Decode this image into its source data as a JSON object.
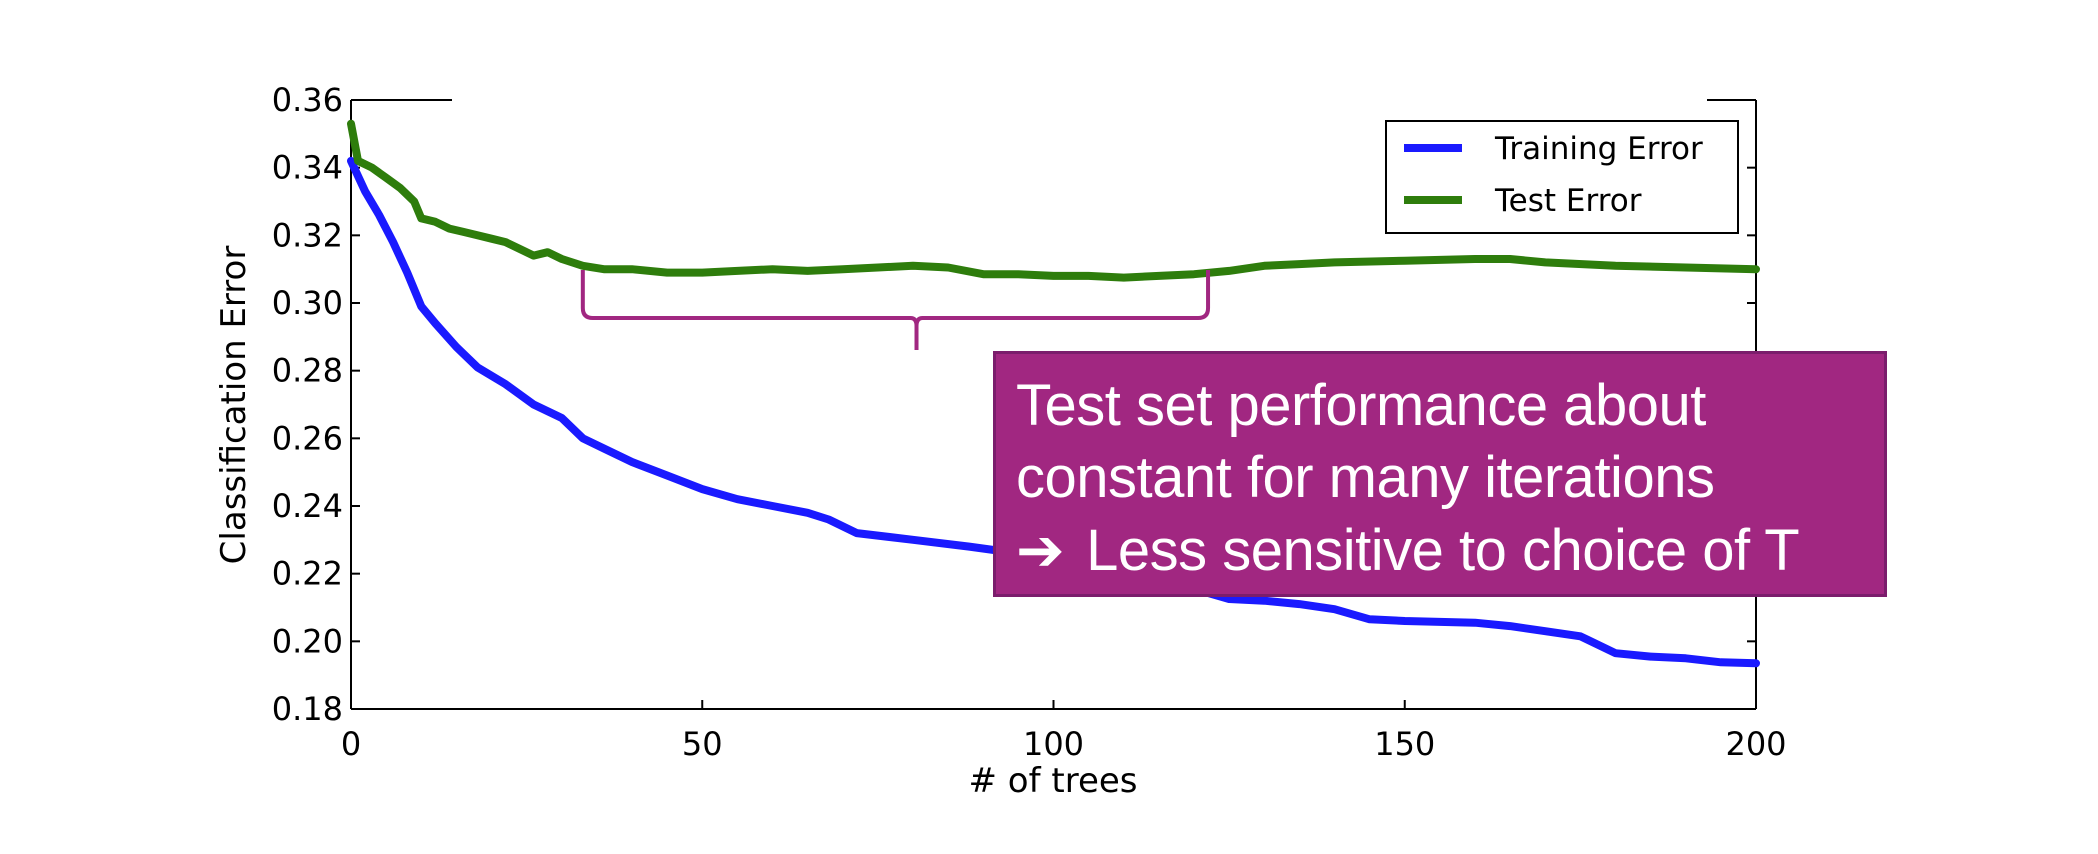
{
  "chart_data": {
    "type": "line",
    "xlabel": "# of trees",
    "ylabel": "Classification Error",
    "xlim": [
      0,
      200
    ],
    "ylim": [
      0.18,
      0.36
    ],
    "xticks": [
      "0",
      "50",
      "100",
      "150",
      "200"
    ],
    "yticks": [
      "0.18",
      "0.20",
      "0.22",
      "0.24",
      "0.26",
      "0.28",
      "0.30",
      "0.32",
      "0.34",
      "0.36"
    ],
    "grid": false,
    "legend_position": "top-right",
    "series": [
      {
        "name": "Training Error",
        "color": "#1a1aff",
        "x": [
          0,
          2,
          4,
          6,
          8,
          10,
          12,
          15,
          18,
          22,
          26,
          30,
          33,
          36,
          40,
          45,
          50,
          55,
          60,
          65,
          68,
          72,
          80,
          88,
          95,
          100,
          110,
          115,
          120,
          125,
          130,
          135,
          140,
          145,
          150,
          160,
          165,
          170,
          175,
          180,
          185,
          190,
          195,
          200
        ],
        "y": [
          0.342,
          0.333,
          0.326,
          0.318,
          0.309,
          0.299,
          0.294,
          0.287,
          0.281,
          0.276,
          0.27,
          0.266,
          0.26,
          0.257,
          0.253,
          0.249,
          0.245,
          0.242,
          0.24,
          0.238,
          0.236,
          0.232,
          0.23,
          0.228,
          0.226,
          0.225,
          0.223,
          0.222,
          0.2155,
          0.2125,
          0.212,
          0.211,
          0.2095,
          0.2065,
          0.206,
          0.2055,
          0.2045,
          0.203,
          0.2015,
          0.1965,
          0.1955,
          0.195,
          0.1938,
          0.1935
        ]
      },
      {
        "name": "Test Error",
        "color": "#2e7d0c",
        "x": [
          0,
          1,
          3,
          5,
          7,
          9,
          10,
          12,
          14,
          16,
          18,
          20,
          22,
          24,
          26,
          28,
          30,
          33,
          36,
          40,
          45,
          50,
          55,
          60,
          65,
          70,
          75,
          80,
          85,
          90,
          95,
          100,
          105,
          110,
          115,
          120,
          125,
          130,
          135,
          140,
          150,
          160,
          165,
          170,
          180,
          190,
          200
        ],
        "y": [
          0.353,
          0.342,
          0.34,
          0.337,
          0.334,
          0.33,
          0.325,
          0.324,
          0.322,
          0.321,
          0.32,
          0.319,
          0.318,
          0.316,
          0.314,
          0.315,
          0.313,
          0.311,
          0.31,
          0.31,
          0.309,
          0.309,
          0.3095,
          0.31,
          0.3095,
          0.31,
          0.3105,
          0.311,
          0.3105,
          0.3085,
          0.3085,
          0.308,
          0.308,
          0.3075,
          0.308,
          0.3085,
          0.3095,
          0.311,
          0.3115,
          0.312,
          0.3125,
          0.313,
          0.313,
          0.312,
          0.311,
          0.3105,
          0.31
        ]
      }
    ],
    "annotation": {
      "bracket_x_range": [
        33,
        122
      ],
      "lines": [
        "Test set performance about",
        "constant for many iterations",
        "Less sensitive to choice of T"
      ],
      "arrow_glyph": "➔",
      "box_color": "#a12781",
      "border_color": "#7b1d6c"
    }
  }
}
